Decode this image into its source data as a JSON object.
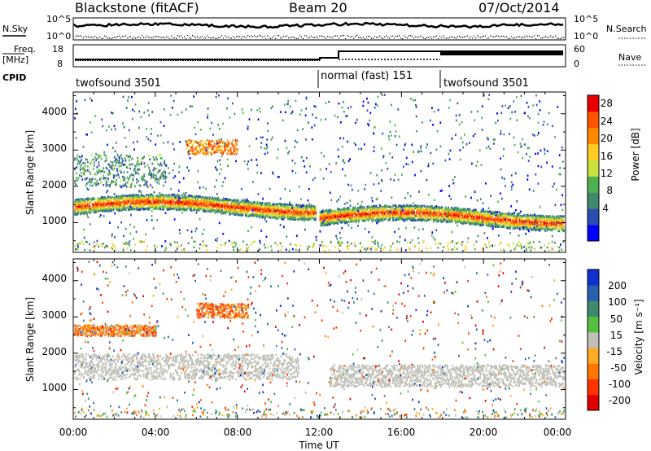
{
  "header": {
    "station": "Blackstone (fitACF)",
    "beam": "Beam 20",
    "date": "07/Oct/2014"
  },
  "noise_panel": {
    "left_label": "N.Sky",
    "right_label": "N.Search",
    "left_ticks": [
      "10^5",
      "10^0"
    ],
    "right_ticks": [
      "10^5",
      "10^0"
    ]
  },
  "freq_panel": {
    "left_label_top": "Freq.",
    "left_label_unit": "[MHz]",
    "left_ticks": [
      "18",
      "8"
    ],
    "right_ticks": [
      "60",
      "0"
    ],
    "right_label": "Nave"
  },
  "cpid": {
    "label": "CPID",
    "segments": [
      {
        "name": "twofsound 3501",
        "start_hour": 0,
        "end_hour": 12.3
      },
      {
        "name": "normal (fast) 151",
        "start_hour": 12.3,
        "end_hour": 18
      },
      {
        "name": "twofsound 3501",
        "start_hour": 18,
        "end_hour": 24
      }
    ]
  },
  "x_axis": {
    "label": "Time UT",
    "ticks": [
      "00:00",
      "04:00",
      "08:00",
      "12:00",
      "16:00",
      "20:00",
      "00:00"
    ]
  },
  "power_panel": {
    "ylabel": "Slant Range [km]",
    "yticks": [
      "1000",
      "2000",
      "3000",
      "4000"
    ],
    "colorbar_label": "Power [dB]",
    "colorbar_ticks": [
      "4",
      "8",
      "12",
      "16",
      "20",
      "24",
      "28"
    ],
    "colors": [
      "#0000ff",
      "#2b4cb0",
      "#3f8a6c",
      "#4fb04f",
      "#c8e040",
      "#ffcc22",
      "#ff8800",
      "#ff5500",
      "#e80000"
    ]
  },
  "velocity_panel": {
    "ylabel": "Slant Range [km]",
    "yticks": [
      "1000",
      "2000",
      "3000",
      "4000"
    ],
    "colorbar_label": "Velocity [m s⁻¹]",
    "colorbar_ticks": [
      "200",
      "100",
      "50",
      "15",
      "-15",
      "-50",
      "-100",
      "-200"
    ],
    "colors": [
      "#1030d0",
      "#2860b0",
      "#3f8a6c",
      "#55c040",
      "#c0c0b8",
      "#ffaa22",
      "#ff7700",
      "#ff3300",
      "#e00000"
    ]
  },
  "chart_data": [
    {
      "type": "heatmap",
      "title": "Power",
      "xlabel": "Time UT",
      "ylabel": "Slant Range [km]",
      "x_range_hours": [
        0,
        24
      ],
      "y_range_km": [
        180,
        4600
      ],
      "color_range_db": [
        0,
        32
      ],
      "features": [
        {
          "kind": "ground-scatter band",
          "start_hour": 0,
          "end_hour": 11.8,
          "range_km_start": 1200,
          "range_km_end": 1700,
          "peak_db": 30
        },
        {
          "kind": "ionospheric scatter",
          "start_hour": 0,
          "end_hour": 4.5,
          "range_km": [
            2000,
            2900
          ],
          "power_db": 10
        },
        {
          "kind": "ionospheric scatter",
          "start_hour": 5.5,
          "end_hour": 8,
          "range_km": [
            2900,
            3300
          ],
          "power_db": 24
        },
        {
          "kind": "ground-scatter band",
          "start_hour": 12,
          "end_hour": 24,
          "range_km_start": 950,
          "range_km_end": 1350,
          "peak_db": 30
        }
      ]
    },
    {
      "type": "heatmap",
      "title": "Velocity",
      "xlabel": "Time UT",
      "ylabel": "Slant Range [km]",
      "x_range_hours": [
        0,
        24
      ],
      "y_range_km": [
        180,
        4600
      ],
      "color_range_ms": [
        -250,
        250
      ],
      "features": [
        {
          "kind": "ground scatter (low velocity)",
          "start_hour": 0,
          "end_hour": 11,
          "range_km": [
            1300,
            2000
          ],
          "velocity_ms": 0
        },
        {
          "kind": "negative velocity scatter",
          "start_hour": 0,
          "end_hour": 4,
          "range_km": [
            2500,
            2800
          ],
          "velocity_ms": -60
        },
        {
          "kind": "mixed velocity scatter",
          "start_hour": 6,
          "end_hour": 8.5,
          "range_km": [
            3000,
            3400
          ],
          "velocity_ms": -80
        },
        {
          "kind": "ground scatter (low velocity)",
          "start_hour": 12.5,
          "end_hour": 24,
          "range_km": [
            1100,
            1700
          ],
          "velocity_ms": 0
        }
      ]
    }
  ]
}
